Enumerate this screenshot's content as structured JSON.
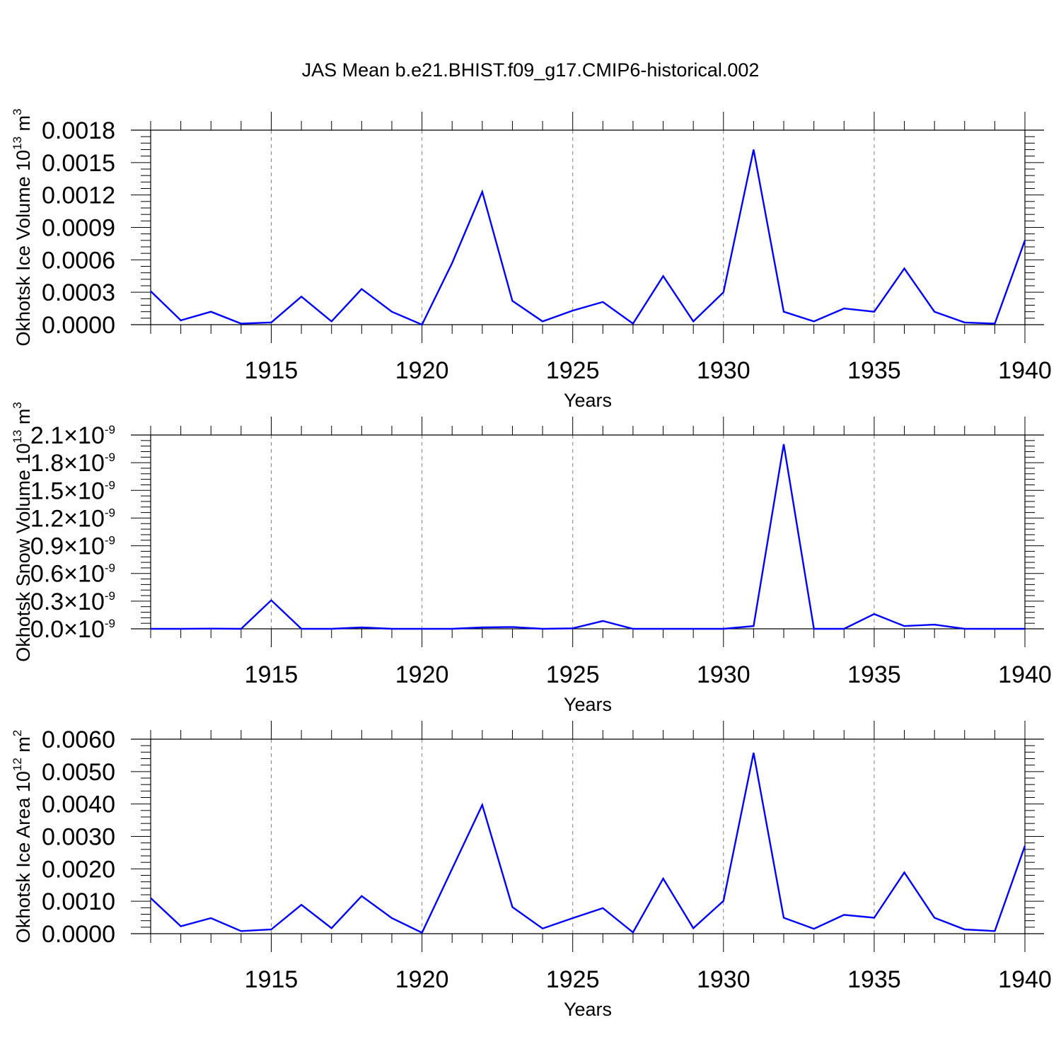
{
  "figure": {
    "title": "JAS Mean b.e21.BHIST.f09_g17.CMIP6-historical.002"
  },
  "colors": {
    "line": "#0000ff",
    "axis": "#000000",
    "grid": "#7f7f7f"
  },
  "chart_data": [
    {
      "type": "line",
      "ylabel": "Okhotsk Ice Volume 10",
      "ylabel_exp": "13",
      "ylabel_unit": " m",
      "ylabel_unit_exp": "3",
      "xlabel": "Years",
      "xlim": [
        1911,
        1940
      ],
      "ylim": [
        0,
        0.0018
      ],
      "yticks": [
        0,
        0.0003,
        0.0006,
        0.0009,
        0.0012,
        0.0015,
        0.0018
      ],
      "ytick_labels": [
        "0.0000",
        "0.0003",
        "0.0006",
        "0.0009",
        "0.0012",
        "0.0015",
        "0.0018"
      ],
      "xticks": [
        1915,
        1920,
        1925,
        1930,
        1935,
        1940
      ],
      "xtick_labels": [
        "1915",
        "1920",
        "1925",
        "1930",
        "1935",
        "1940"
      ],
      "x": [
        1911,
        1912,
        1913,
        1914,
        1915,
        1916,
        1917,
        1918,
        1919,
        1920,
        1921,
        1922,
        1923,
        1924,
        1925,
        1926,
        1927,
        1928,
        1929,
        1930,
        1931,
        1932,
        1933,
        1934,
        1935,
        1936,
        1937,
        1938,
        1939,
        1940
      ],
      "series": [
        {
          "values": [
            0.00031,
            4e-05,
            0.00012,
            1e-05,
            2e-05,
            0.00026,
            3e-05,
            0.00033,
            0.00012,
            0.0,
            0.00057,
            0.00123,
            0.00022,
            3e-05,
            0.00013,
            0.00021,
            1e-05,
            0.00045,
            3e-05,
            0.0003,
            0.00162,
            0.00012,
            3e-05,
            0.00015,
            0.00012,
            0.00052,
            0.00012,
            2e-05,
            1e-05,
            0.00078
          ]
        }
      ]
    },
    {
      "type": "line",
      "ylabel": "Okhotsk Snow Volume 10",
      "ylabel_exp": "13",
      "ylabel_unit": " m",
      "ylabel_unit_exp": "3",
      "xlabel": "Years",
      "xlim": [
        1911,
        1940
      ],
      "ylim": [
        0,
        2.1e-09
      ],
      "yticks": [
        0,
        3e-10,
        6e-10,
        9e-10,
        1.2e-09,
        1.5e-09,
        1.8e-09,
        2.1e-09
      ],
      "ytick_mantissas": [
        "0.0",
        "0.3",
        "0.6",
        "0.9",
        "1.2",
        "1.5",
        "1.8",
        "2.1"
      ],
      "ytick_times": "×10",
      "ytick_exp": "-9",
      "xticks": [
        1915,
        1920,
        1925,
        1930,
        1935,
        1940
      ],
      "xtick_labels": [
        "1915",
        "1920",
        "1925",
        "1930",
        "1935",
        "1940"
      ],
      "x": [
        1911,
        1912,
        1913,
        1914,
        1915,
        1916,
        1917,
        1918,
        1919,
        1920,
        1921,
        1922,
        1923,
        1924,
        1925,
        1926,
        1927,
        1928,
        1929,
        1930,
        1931,
        1932,
        1933,
        1934,
        1935,
        1936,
        1937,
        1938,
        1939,
        1940
      ],
      "series": [
        {
          "values": [
            0.0,
            0.0,
            2e-12,
            0.0,
            3.1e-10,
            0.0,
            0.0,
            1.5e-11,
            0.0,
            0.0,
            0.0,
            1.5e-11,
            2e-11,
            0.0,
            5e-12,
            8.5e-11,
            0.0,
            0.0,
            0.0,
            0.0,
            3e-11,
            2e-09,
            0.0,
            0.0,
            1.6e-10,
            3e-11,
            4.5e-11,
            0.0,
            0.0,
            0.0
          ]
        }
      ]
    },
    {
      "type": "line",
      "ylabel": "Okhotsk Ice Area 10",
      "ylabel_exp": "12",
      "ylabel_unit": " m",
      "ylabel_unit_exp": "2",
      "xlabel": "Years",
      "xlim": [
        1911,
        1940
      ],
      "ylim": [
        0,
        0.006
      ],
      "yticks": [
        0,
        0.001,
        0.002,
        0.003,
        0.004,
        0.005,
        0.006
      ],
      "ytick_labels": [
        "0.0000",
        "0.0010",
        "0.0020",
        "0.0030",
        "0.0040",
        "0.0050",
        "0.0060"
      ],
      "xticks": [
        1915,
        1920,
        1925,
        1930,
        1935,
        1940
      ],
      "xtick_labels": [
        "1915",
        "1920",
        "1925",
        "1930",
        "1935",
        "1940"
      ],
      "x": [
        1911,
        1912,
        1913,
        1914,
        1915,
        1916,
        1917,
        1918,
        1919,
        1920,
        1921,
        1922,
        1923,
        1924,
        1925,
        1926,
        1927,
        1928,
        1929,
        1930,
        1931,
        1932,
        1933,
        1934,
        1935,
        1936,
        1937,
        1938,
        1939,
        1940
      ],
      "series": [
        {
          "values": [
            0.0011,
            0.00023,
            0.00048,
            8e-05,
            0.00013,
            0.00089,
            0.00017,
            0.00116,
            0.00048,
            3e-05,
            0.002,
            0.00397,
            0.00082,
            0.00016,
            0.00048,
            0.00079,
            4e-05,
            0.0017,
            0.00017,
            0.00101,
            0.00558,
            0.00049,
            0.00015,
            0.00058,
            0.00049,
            0.00189,
            0.00049,
            0.00013,
            8e-05,
            0.00271
          ]
        }
      ]
    }
  ]
}
